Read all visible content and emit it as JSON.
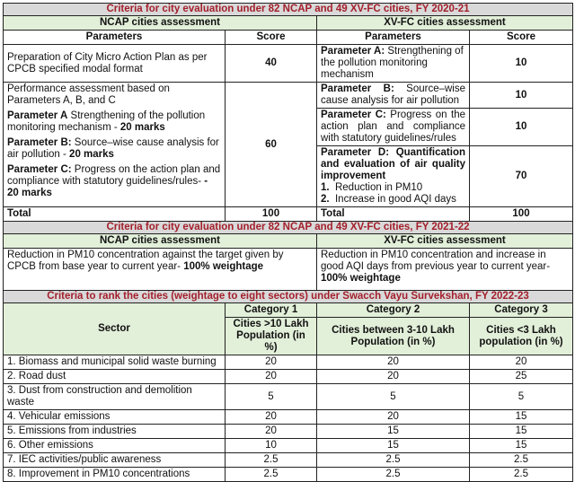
{
  "fy2020": {
    "title": "Criteria for city evaluation under 82 NCAP and 49 XV-FC cities, FY 2020-21",
    "ncap_header": "NCAP cities assessment",
    "xvfc_header": "XV-FC cities assessment",
    "col_parameters": "Parameters",
    "col_score": "Score",
    "ncap_row1": {
      "text": "Preparation of  City Micro Action Plan as per CPCB specified modal format",
      "score": "40"
    },
    "ncap_row2": {
      "intro": "Performance assessment based on Parameters A, B, and C",
      "a_label": "Parameter A",
      "a_text": " Strengthening of the pollution monitoring mechanism - ",
      "a_marks": "20 marks",
      "b_label": "Parameter B:",
      "b_text": " Source–wise cause analysis for air pollution - ",
      "b_marks": "20 marks",
      "c_label": "Parameter C:",
      "c_text": " Progress on the action plan and compliance with statutory guidelines/rules- ",
      "c_marks": "- 20 marks",
      "score": "60"
    },
    "xvfc_rows": [
      {
        "label": "Parameter A:",
        "text": " Strengthening of the pollution monitoring mechanism",
        "score": "10"
      },
      {
        "label": "Parameter B:",
        "text": " Source–wise cause analysis for air pollution",
        "score": "10"
      },
      {
        "label": "Parameter C:",
        "text": " Progress on the action plan and compliance with statutory guidelines/rules",
        "score": "10"
      },
      {
        "label": "Parameter D: Quantification and evaluation of air quality improvement",
        "items": [
          "Reduction in PM10",
          "Increase in good AQI days"
        ],
        "score": "70"
      }
    ],
    "total_label": "Total",
    "ncap_total": "100",
    "xvfc_total": "100"
  },
  "fy2021": {
    "title": "Criteria for city evaluation under 82 NCAP and 49 XV-FC cities, FY 2021-22",
    "ncap_header": "NCAP cities assessment",
    "xvfc_header": "XV-FC cities assessment",
    "ncap_text": "Reduction in PM10 concentration against the target given by CPCB from base year to current year- ",
    "ncap_bold": "100% weightage",
    "xvfc_text": "Reduction in PM10 concentration and increase in good AQI days from previous year to current year- ",
    "xvfc_bold": "100% weightage"
  },
  "fy2022": {
    "title": "Criteria to rank the cities (weightage to eight sectors) under Swacch Vayu Survekshan, FY 2022-23",
    "col_sector": "Sector",
    "categories": [
      {
        "name": "Category 1",
        "desc": "Cities >10 Lakh Population (in %)"
      },
      {
        "name": "Category 2",
        "desc": "Cities between 3-10 Lakh Population (in %)"
      },
      {
        "name": "Category 3",
        "desc": "Cities <3 Lakh population (in %)"
      }
    ],
    "rows": [
      {
        "sector": "1. Biomass and municipal solid waste burning",
        "values": [
          "20",
          "20",
          "20"
        ]
      },
      {
        "sector": "2. Road dust",
        "values": [
          "20",
          "20",
          "25"
        ]
      },
      {
        "sector": "3. Dust from construction and demolition waste",
        "values": [
          "5",
          "5",
          "5"
        ]
      },
      {
        "sector": "4. Vehicular emissions",
        "values": [
          "20",
          "20",
          "15"
        ]
      },
      {
        "sector": "5. Emissions from industries",
        "values": [
          "20",
          "15",
          "15"
        ]
      },
      {
        "sector": "6. Other emissions",
        "values": [
          "10",
          "15",
          "15"
        ]
      },
      {
        "sector": "7. IEC activities/public awareness",
        "values": [
          "2.5",
          "2.5",
          "2.5"
        ]
      },
      {
        "sector": "8. Improvement in PM10 concentrations",
        "values": [
          "2.5",
          "2.5",
          "2.5"
        ]
      }
    ]
  }
}
